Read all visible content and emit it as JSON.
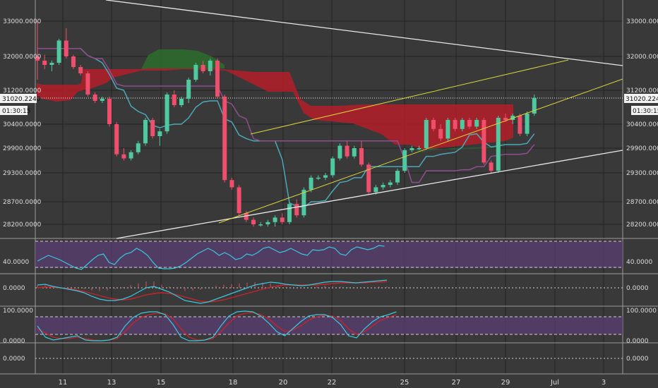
{
  "chart_data": {
    "type": "candlestick",
    "title": "",
    "colors": {
      "up": "#4fc9a0",
      "down": "#ef4f6c",
      "tenkan": "#4aa8b8",
      "kijun": "#8e4f8e",
      "cloud_bear": "#b51f2a",
      "cloud_bull": "#2e6a2e",
      "trend_yellow": "#d9d23a",
      "trend_white": "#e8e8e8",
      "osc_band": "#5a3d72",
      "macd_line": "#38c8e0",
      "signal_line": "#c8242c"
    },
    "price_axis": {
      "labels": [
        "33000.0000",
        "32000.0000",
        "31200.0000",
        "30400.0000",
        "29900.0000",
        "29300.0000",
        "28700.0000",
        "28200.0000"
      ],
      "values": [
        33000,
        32000,
        31200,
        30400,
        29900,
        29300,
        28700,
        28200
      ],
      "ylim": [
        28050,
        33300
      ]
    },
    "x_axis": {
      "labels": [
        "11",
        "13",
        "15",
        "18",
        "20",
        "22",
        "25",
        "27",
        "29",
        "Jul",
        "3"
      ]
    },
    "price_tag": {
      "value": "31020.2240",
      "countdown": "01:30:15"
    },
    "candles": [
      [
        32000,
        33000,
        31450,
        31900
      ],
      [
        31900,
        32050,
        31700,
        31800
      ],
      [
        31800,
        31900,
        31650,
        31850
      ],
      [
        31850,
        32500,
        31800,
        32450
      ],
      [
        32450,
        32800,
        31950,
        32000
      ],
      [
        32000,
        32050,
        31700,
        31750
      ],
      [
        31750,
        31800,
        31550,
        31600
      ],
      [
        31600,
        31650,
        31050,
        31100
      ],
      [
        31100,
        31150,
        30900,
        30950
      ],
      [
        30950,
        31050,
        30900,
        31000
      ],
      [
        31000,
        31050,
        30350,
        30400
      ],
      [
        30400,
        30450,
        29700,
        29750
      ],
      [
        29750,
        29900,
        29600,
        29650
      ],
      [
        29650,
        29850,
        29600,
        29800
      ],
      [
        29800,
        30050,
        29750,
        30000
      ],
      [
        30000,
        30550,
        29950,
        30500
      ],
      [
        30500,
        30550,
        30100,
        30150
      ],
      [
        30150,
        30300,
        29950,
        30250
      ],
      [
        30250,
        31150,
        30200,
        31100
      ],
      [
        31100,
        31200,
        30800,
        30850
      ],
      [
        30850,
        31050,
        30800,
        31000
      ],
      [
        31000,
        31500,
        30900,
        31450
      ],
      [
        31450,
        31850,
        31400,
        31800
      ],
      [
        31800,
        31900,
        31600,
        31650
      ],
      [
        31650,
        31950,
        31550,
        31900
      ],
      [
        31900,
        31950,
        31000,
        31050
      ],
      [
        31050,
        31100,
        29100,
        29150
      ],
      [
        29150,
        29200,
        28950,
        29000
      ],
      [
        29000,
        29050,
        28400,
        28450
      ],
      [
        28450,
        28500,
        28250,
        28300
      ],
      [
        28300,
        28350,
        28150,
        28200
      ],
      [
        28200,
        28250,
        28150,
        28200
      ],
      [
        28200,
        28300,
        28150,
        28250
      ],
      [
        28250,
        28400,
        28150,
        28350
      ],
      [
        28350,
        28450,
        28200,
        28250
      ],
      [
        28250,
        28700,
        28200,
        28650
      ],
      [
        28650,
        28750,
        28350,
        28400
      ],
      [
        28400,
        29000,
        28350,
        28950
      ],
      [
        28950,
        29250,
        28900,
        29200
      ],
      [
        29200,
        29250,
        29150,
        29200
      ],
      [
        29200,
        29300,
        29150,
        29250
      ],
      [
        29250,
        29700,
        29200,
        29650
      ],
      [
        29650,
        30000,
        29600,
        29950
      ],
      [
        29950,
        30050,
        29650,
        29700
      ],
      [
        29700,
        29950,
        29650,
        29900
      ],
      [
        29900,
        30050,
        29450,
        29500
      ],
      [
        29500,
        29550,
        28850,
        28900
      ],
      [
        28900,
        29050,
        28850,
        29000
      ],
      [
        29000,
        29100,
        28950,
        29050
      ],
      [
        29050,
        29150,
        29000,
        29100
      ],
      [
        29100,
        29400,
        29050,
        29350
      ],
      [
        29350,
        29900,
        29300,
        29850
      ],
      [
        29850,
        29950,
        29800,
        29900
      ],
      [
        29900,
        29950,
        29850,
        29900
      ],
      [
        29900,
        30550,
        29850,
        30500
      ],
      [
        30500,
        30550,
        30250,
        30300
      ],
      [
        30300,
        30400,
        30050,
        30100
      ],
      [
        30100,
        30550,
        30050,
        30500
      ],
      [
        30500,
        30550,
        30250,
        30300
      ],
      [
        30300,
        30550,
        30250,
        30500
      ],
      [
        30500,
        30550,
        30300,
        30350
      ],
      [
        30350,
        30550,
        30300,
        30500
      ],
      [
        30500,
        30550,
        29500,
        29550
      ],
      [
        29550,
        29600,
        29300,
        29350
      ],
      [
        29350,
        30600,
        29300,
        30550
      ],
      [
        30550,
        30650,
        30450,
        30500
      ],
      [
        30500,
        30650,
        30400,
        30600
      ],
      [
        30600,
        30650,
        30150,
        30200
      ],
      [
        30200,
        30700,
        30150,
        30650
      ],
      [
        30650,
        31100,
        30600,
        31020
      ]
    ],
    "oscillators": [
      {
        "name": "",
        "ticks": [
          "40.0000"
        ]
      },
      {
        "name": "",
        "ticks": [
          "0.0000"
        ]
      },
      {
        "name": "",
        "ticks": [
          "100.0000",
          "0.0000"
        ]
      },
      {
        "name": "",
        "ticks": [
          "0.0000"
        ]
      }
    ]
  }
}
